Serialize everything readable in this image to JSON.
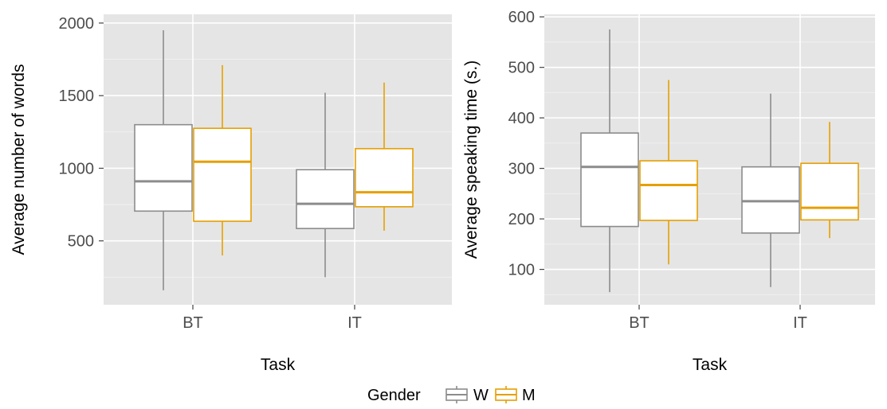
{
  "legend": {
    "title": "Gender",
    "items": [
      {
        "label": "W",
        "color": "#8c8c8c"
      },
      {
        "label": "M",
        "color": "#e69f00"
      }
    ]
  },
  "chart_data": [
    {
      "type": "box",
      "xlabel": "Task",
      "ylabel": "Average number of words",
      "categories": [
        "BT",
        "IT"
      ],
      "ylim": [
        60,
        2060
      ],
      "yticks": [
        500,
        1000,
        1500,
        2000
      ],
      "grid": true,
      "series": [
        {
          "name": "W",
          "color": "#8c8c8c",
          "boxes": [
            {
              "min": 160,
              "q1": 705,
              "median": 910,
              "q3": 1300,
              "max": 1950
            },
            {
              "min": 250,
              "q1": 585,
              "median": 755,
              "q3": 990,
              "max": 1520
            }
          ]
        },
        {
          "name": "M",
          "color": "#e69f00",
          "boxes": [
            {
              "min": 400,
              "q1": 635,
              "median": 1045,
              "q3": 1275,
              "max": 1710
            },
            {
              "min": 570,
              "q1": 735,
              "median": 835,
              "q3": 1135,
              "max": 1590
            }
          ]
        }
      ]
    },
    {
      "type": "box",
      "xlabel": "Task",
      "ylabel": "Average speaking time (s.)",
      "categories": [
        "BT",
        "IT"
      ],
      "ylim": [
        30,
        605
      ],
      "yticks": [
        100,
        200,
        300,
        400,
        500,
        600
      ],
      "grid": true,
      "series": [
        {
          "name": "W",
          "color": "#8c8c8c",
          "boxes": [
            {
              "min": 55,
              "q1": 185,
              "median": 303,
              "q3": 370,
              "max": 575
            },
            {
              "min": 65,
              "q1": 172,
              "median": 235,
              "q3": 303,
              "max": 448
            }
          ]
        },
        {
          "name": "M",
          "color": "#e69f00",
          "boxes": [
            {
              "min": 110,
              "q1": 197,
              "median": 267,
              "q3": 315,
              "max": 475
            },
            {
              "min": 162,
              "q1": 198,
              "median": 222,
              "q3": 310,
              "max": 392
            }
          ]
        }
      ]
    }
  ]
}
